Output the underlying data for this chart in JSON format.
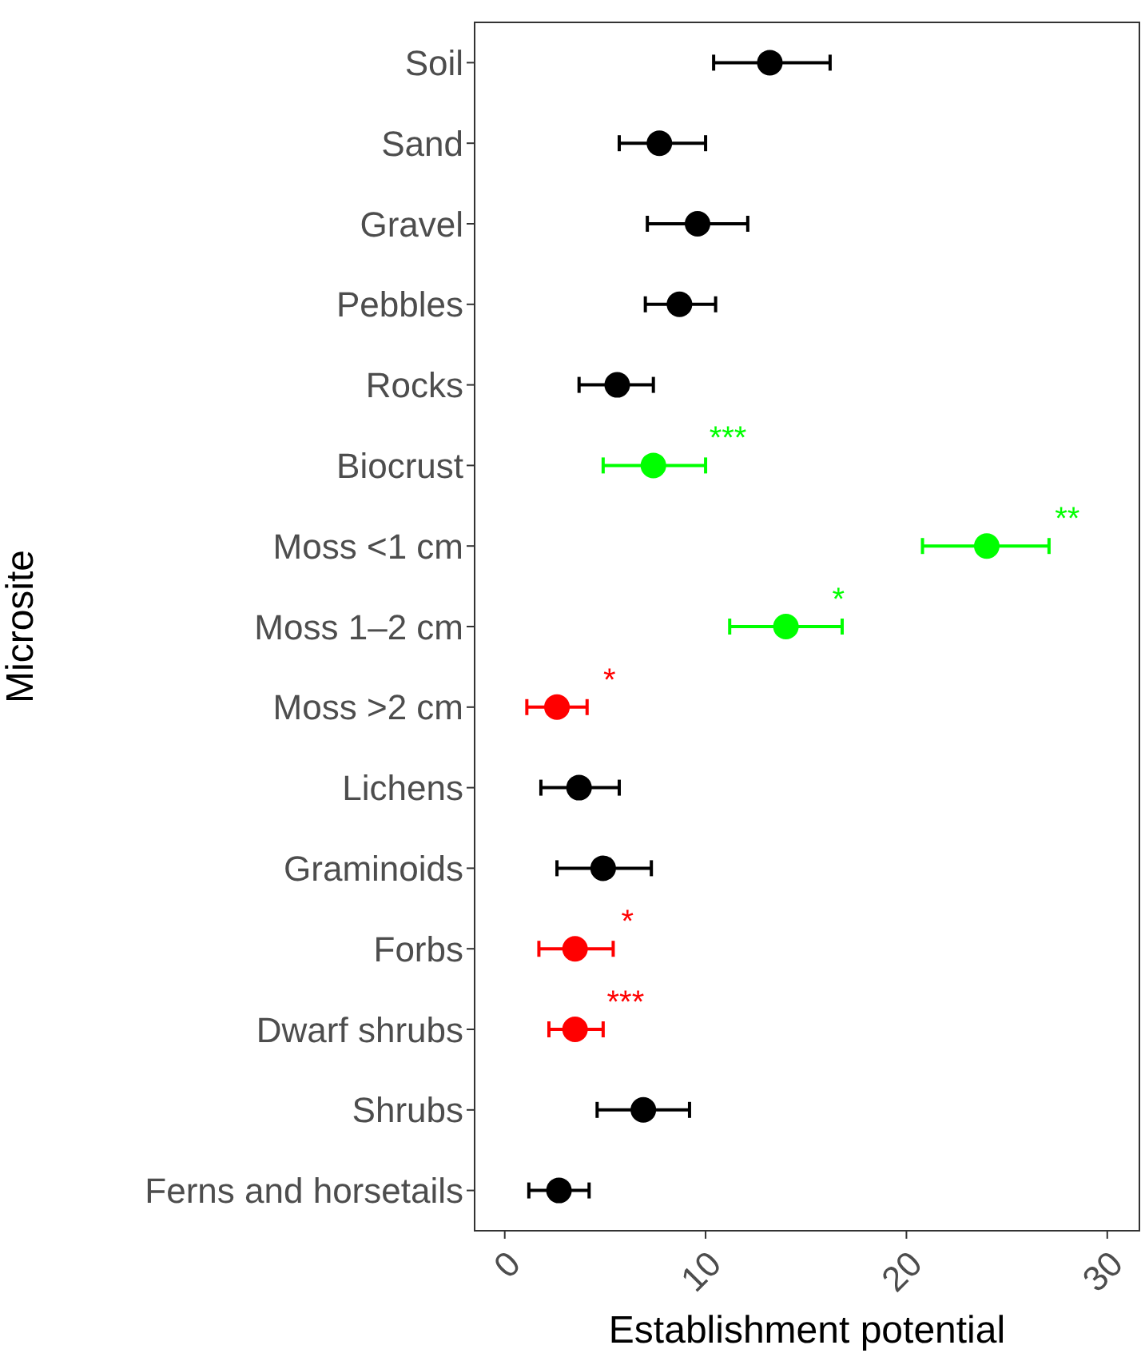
{
  "chart_data": {
    "type": "scatter",
    "orientation": "horizontal",
    "xlabel": "Establishment potential",
    "ylabel": "Microsite",
    "categories": [
      "Soil",
      "Sand",
      "Gravel",
      "Pebbles",
      "Rocks",
      "Biocrust",
      "Moss <1 cm",
      "Moss 1–2 cm",
      "Moss >2 cm",
      "Lichens",
      "Graminoids",
      "Forbs",
      "Dwarf shrubs",
      "Shrubs",
      "Ferns and horsetails"
    ],
    "values": [
      13.2,
      7.7,
      9.6,
      8.7,
      5.6,
      7.4,
      24.0,
      14.0,
      2.6,
      3.7,
      4.9,
      3.5,
      3.5,
      6.9,
      2.7
    ],
    "errors": [
      [
        10.4,
        16.2
      ],
      [
        5.7,
        10.0
      ],
      [
        7.1,
        12.1
      ],
      [
        7.0,
        10.5
      ],
      [
        3.7,
        7.4
      ],
      [
        4.9,
        10.0
      ],
      [
        20.8,
        27.1
      ],
      [
        11.2,
        16.8
      ],
      [
        1.1,
        4.1
      ],
      [
        1.8,
        5.7
      ],
      [
        2.6,
        7.3
      ],
      [
        1.7,
        5.4
      ],
      [
        2.2,
        4.9
      ],
      [
        4.6,
        9.2
      ],
      [
        1.2,
        4.2
      ]
    ],
    "colors": [
      "#000000",
      "#000000",
      "#000000",
      "#000000",
      "#000000",
      "#00ff00",
      "#00ff00",
      "#00ff00",
      "#ff0000",
      "#000000",
      "#000000",
      "#ff0000",
      "#ff0000",
      "#000000",
      "#000000"
    ],
    "marker": "circle",
    "grid": false,
    "legend": false,
    "xlim": [
      -1.5,
      31.6
    ],
    "xticks": [
      0,
      10,
      20,
      30
    ],
    "annotations": [
      {
        "text": "***",
        "x": 10.0,
        "y": "Biocrust"
      },
      {
        "text": "**",
        "x": 26.9,
        "y": "Moss <1 cm"
      },
      {
        "text": "*",
        "x": 15.5,
        "y": "Moss 1–2 cm"
      },
      {
        "text": "*",
        "x": 4.1,
        "y": "Moss >2 cm"
      },
      {
        "text": "*",
        "x": 5.0,
        "y": "Forbs"
      },
      {
        "text": "***",
        "x": 4.9,
        "y": "Dwarf shrubs"
      }
    ]
  }
}
